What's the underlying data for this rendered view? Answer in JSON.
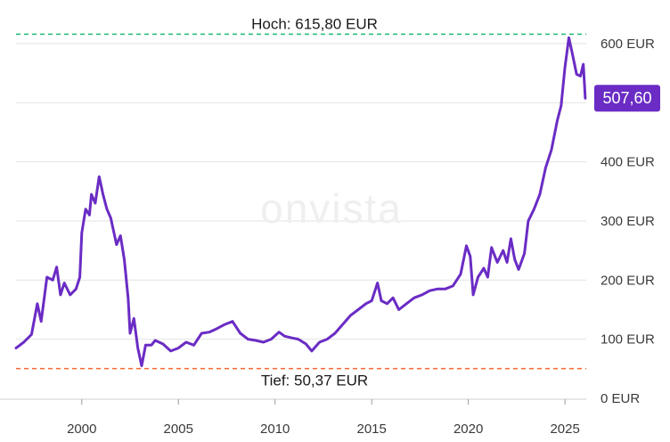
{
  "watermark": "onvista",
  "high_label": "Hoch: 615,80 EUR",
  "low_label": "Tief: 50,37 EUR",
  "last_value_label": "507,60",
  "colors": {
    "line": "#6a2cc4",
    "badge": "#6a2cc4",
    "high": "#1fbf7a",
    "low": "#f26a2e",
    "grid": "#e3e3e3"
  },
  "chart_data": {
    "type": "line",
    "title": "",
    "xlabel": "",
    "ylabel": "",
    "currency": "EUR",
    "xlim": [
      1996.6,
      2026.1
    ],
    "ylim": [
      0,
      615
    ],
    "y_ticks": [
      0,
      100,
      200,
      300,
      400,
      500,
      600
    ],
    "y_tick_labels": [
      "0 EUR",
      "100 EUR",
      "200 EUR",
      "300 EUR",
      "400 EUR",
      "",
      "600 EUR"
    ],
    "x_ticks": [
      2000,
      2005,
      2010,
      2015,
      2020,
      2025
    ],
    "x_tick_labels": [
      "2000",
      "2005",
      "2010",
      "2015",
      "2020",
      "2025"
    ],
    "grid": true,
    "high": 615.8,
    "low": 50.37,
    "last": 507.6,
    "series": [
      {
        "points": [
          [
            1996.6,
            85
          ],
          [
            1997.0,
            95
          ],
          [
            1997.4,
            108
          ],
          [
            1997.7,
            160
          ],
          [
            1997.9,
            130
          ],
          [
            1998.2,
            205
          ],
          [
            1998.5,
            200
          ],
          [
            1998.7,
            222
          ],
          [
            1998.9,
            175
          ],
          [
            1999.1,
            195
          ],
          [
            1999.4,
            175
          ],
          [
            1999.7,
            185
          ],
          [
            1999.9,
            205
          ],
          [
            2000.0,
            280
          ],
          [
            2000.2,
            320
          ],
          [
            2000.4,
            310
          ],
          [
            2000.5,
            345
          ],
          [
            2000.7,
            330
          ],
          [
            2000.9,
            375
          ],
          [
            2001.1,
            345
          ],
          [
            2001.3,
            320
          ],
          [
            2001.5,
            305
          ],
          [
            2001.8,
            260
          ],
          [
            2002.0,
            275
          ],
          [
            2002.2,
            235
          ],
          [
            2002.4,
            170
          ],
          [
            2002.5,
            110
          ],
          [
            2002.7,
            135
          ],
          [
            2002.9,
            85
          ],
          [
            2003.1,
            55
          ],
          [
            2003.3,
            90
          ],
          [
            2003.6,
            90
          ],
          [
            2003.8,
            98
          ],
          [
            2004.2,
            92
          ],
          [
            2004.6,
            80
          ],
          [
            2005.0,
            85
          ],
          [
            2005.4,
            95
          ],
          [
            2005.8,
            90
          ],
          [
            2006.2,
            110
          ],
          [
            2006.6,
            112
          ],
          [
            2007.0,
            118
          ],
          [
            2007.4,
            125
          ],
          [
            2007.8,
            130
          ],
          [
            2008.2,
            110
          ],
          [
            2008.6,
            100
          ],
          [
            2009.0,
            98
          ],
          [
            2009.4,
            95
          ],
          [
            2009.8,
            100
          ],
          [
            2010.2,
            112
          ],
          [
            2010.5,
            105
          ],
          [
            2010.9,
            102
          ],
          [
            2011.2,
            100
          ],
          [
            2011.6,
            92
          ],
          [
            2011.9,
            80
          ],
          [
            2012.3,
            95
          ],
          [
            2012.7,
            100
          ],
          [
            2013.1,
            110
          ],
          [
            2013.5,
            125
          ],
          [
            2013.9,
            140
          ],
          [
            2014.3,
            150
          ],
          [
            2014.7,
            160
          ],
          [
            2015.0,
            165
          ],
          [
            2015.3,
            195
          ],
          [
            2015.5,
            165
          ],
          [
            2015.8,
            160
          ],
          [
            2016.1,
            170
          ],
          [
            2016.4,
            150
          ],
          [
            2016.8,
            160
          ],
          [
            2017.2,
            170
          ],
          [
            2017.6,
            175
          ],
          [
            2018.0,
            182
          ],
          [
            2018.4,
            185
          ],
          [
            2018.8,
            185
          ],
          [
            2019.2,
            190
          ],
          [
            2019.6,
            210
          ],
          [
            2019.9,
            258
          ],
          [
            2020.1,
            240
          ],
          [
            2020.25,
            175
          ],
          [
            2020.5,
            205
          ],
          [
            2020.8,
            220
          ],
          [
            2021.0,
            205
          ],
          [
            2021.2,
            255
          ],
          [
            2021.5,
            230
          ],
          [
            2021.8,
            250
          ],
          [
            2022.0,
            230
          ],
          [
            2022.2,
            270
          ],
          [
            2022.4,
            235
          ],
          [
            2022.6,
            218
          ],
          [
            2022.9,
            245
          ],
          [
            2023.1,
            300
          ],
          [
            2023.4,
            320
          ],
          [
            2023.7,
            345
          ],
          [
            2024.0,
            390
          ],
          [
            2024.3,
            420
          ],
          [
            2024.6,
            470
          ],
          [
            2024.8,
            495
          ],
          [
            2025.0,
            560
          ],
          [
            2025.2,
            610
          ],
          [
            2025.4,
            580
          ],
          [
            2025.6,
            548
          ],
          [
            2025.8,
            545
          ],
          [
            2025.95,
            565
          ],
          [
            2026.05,
            507.6
          ]
        ]
      }
    ]
  }
}
